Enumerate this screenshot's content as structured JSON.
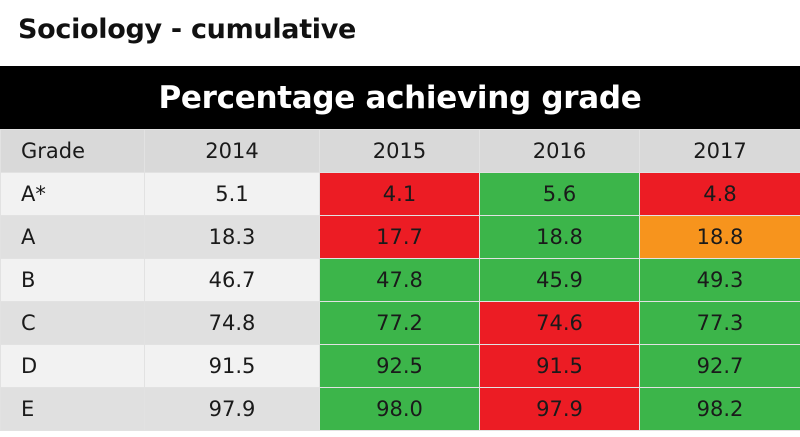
{
  "title": "Sociology - cumulative",
  "banner": "Percentage achieving grade",
  "table": {
    "headers": [
      "Grade",
      "2014",
      "2015",
      "2016",
      "2017"
    ],
    "rows": [
      {
        "grade": "A*",
        "values": [
          "5.1",
          "4.1",
          "5.6",
          "4.8"
        ],
        "colors": [
          "none",
          "red",
          "green",
          "red"
        ]
      },
      {
        "grade": "A",
        "values": [
          "18.3",
          "17.7",
          "18.8",
          "18.8"
        ],
        "colors": [
          "none",
          "red",
          "green",
          "orange"
        ]
      },
      {
        "grade": "B",
        "values": [
          "46.7",
          "47.8",
          "45.9",
          "49.3"
        ],
        "colors": [
          "none",
          "green",
          "green",
          "green"
        ]
      },
      {
        "grade": "C",
        "values": [
          "74.8",
          "77.2",
          "74.6",
          "77.3"
        ],
        "colors": [
          "none",
          "green",
          "red",
          "green"
        ]
      },
      {
        "grade": "D",
        "values": [
          "91.5",
          "92.5",
          "91.5",
          "92.7"
        ],
        "colors": [
          "none",
          "green",
          "red",
          "green"
        ]
      },
      {
        "grade": "E",
        "values": [
          "97.9",
          "98.0",
          "97.9",
          "98.2"
        ],
        "colors": [
          "none",
          "green",
          "red",
          "green"
        ]
      }
    ]
  },
  "status_colors": {
    "green": "#3cb54a",
    "red": "#ec1c24",
    "orange": "#f7941d"
  }
}
